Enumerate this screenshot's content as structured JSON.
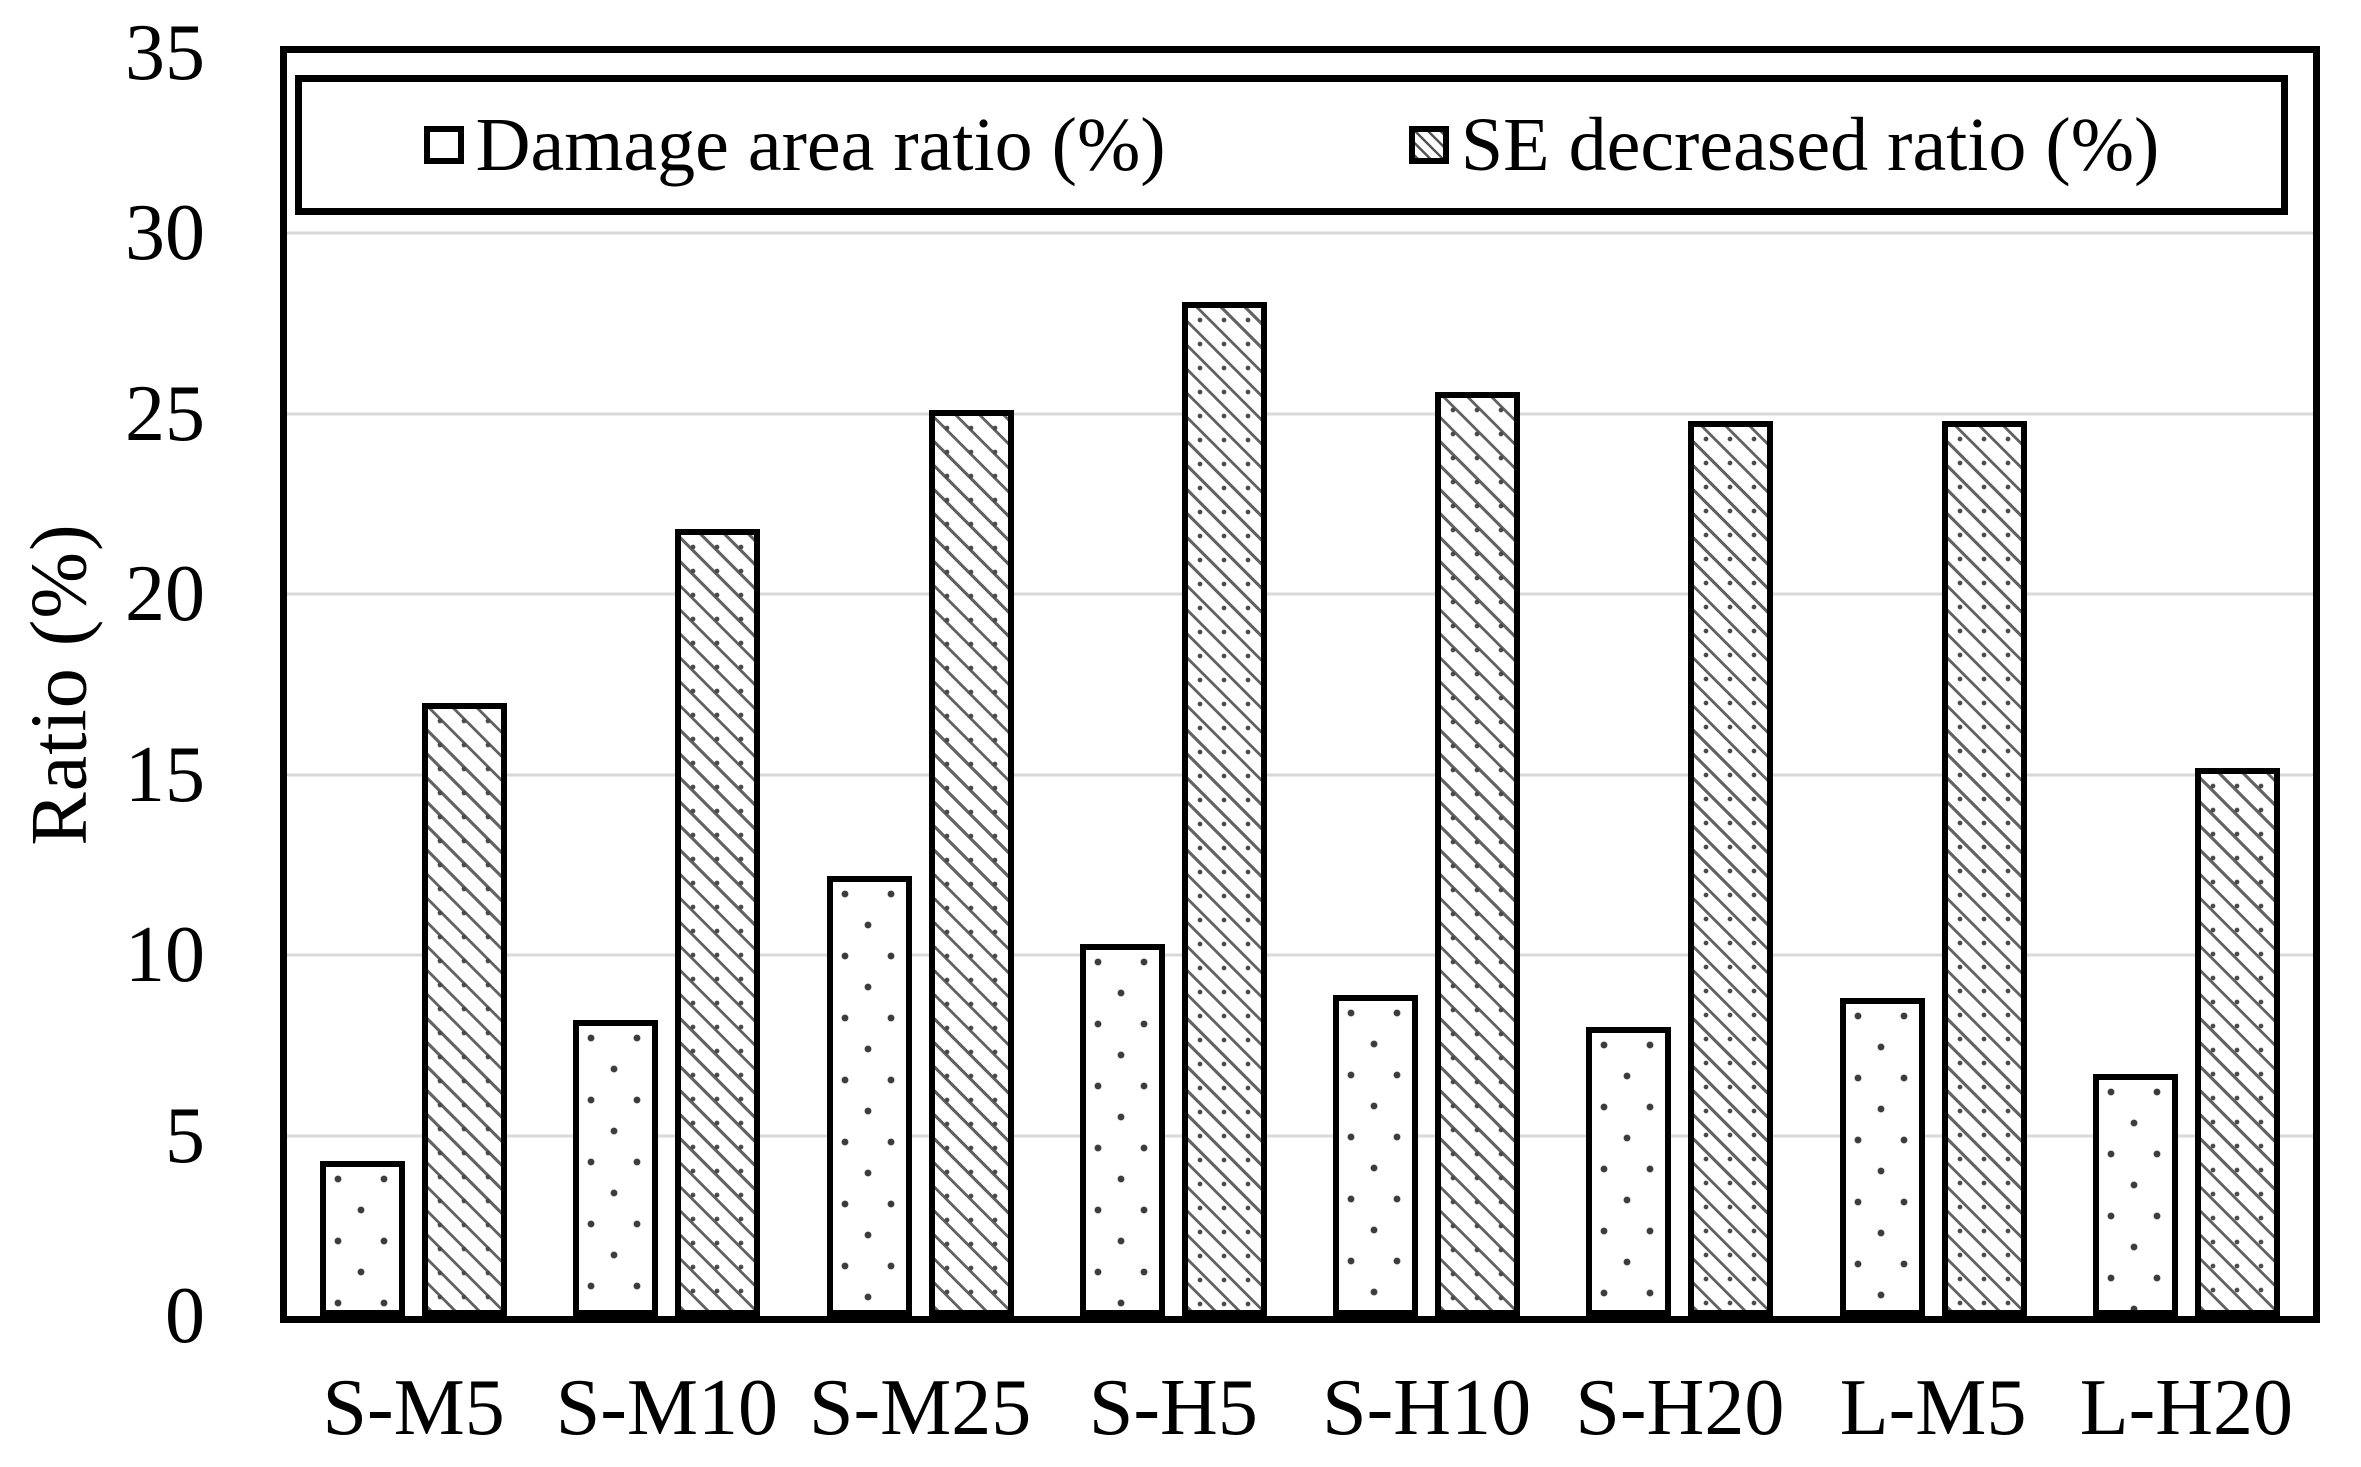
{
  "figure": {
    "background": "#ffffff",
    "ink_color": "#000000",
    "gridline_color": "#d9d9d9"
  },
  "y_axis": {
    "title": "Ratio (%)",
    "ticks": [
      0,
      5,
      10,
      15,
      20,
      25,
      30,
      35
    ],
    "min": 0,
    "max": 35
  },
  "chart_data": {
    "type": "bar",
    "title": "",
    "xlabel": "",
    "ylabel": "Ratio (%)",
    "ylim": [
      0,
      35
    ],
    "grid": true,
    "grid_interval": 5,
    "legend_position": "top-inside",
    "categories": [
      "S-M5",
      "S-M10",
      "S-M25",
      "S-H5",
      "S-H10",
      "S-H20",
      "L-M5",
      "L-H20"
    ],
    "series": [
      {
        "name": "Damage area ratio (%)",
        "pattern": "dots",
        "values": [
          4.3,
          8.2,
          12.2,
          10.3,
          8.9,
          8.0,
          8.8,
          6.7
        ]
      },
      {
        "name": "SE decreased ratio (%)",
        "pattern": "hatch",
        "values": [
          17.0,
          21.8,
          25.1,
          28.1,
          25.6,
          24.8,
          24.8,
          15.2
        ]
      }
    ]
  }
}
